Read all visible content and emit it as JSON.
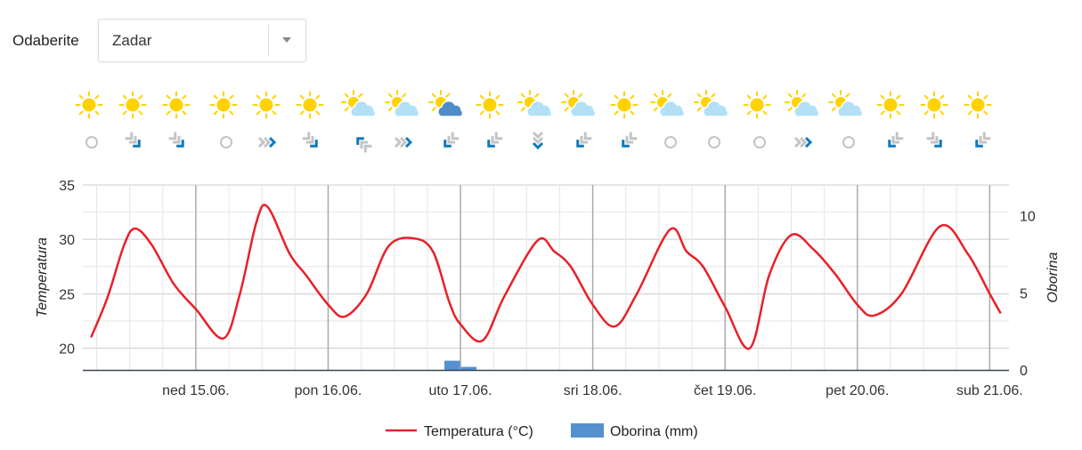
{
  "location_picker": {
    "label": "Odaberite",
    "selected": "Zadar"
  },
  "forecast_icons": [
    {
      "weather": "sun-icon",
      "wind": "calm"
    },
    {
      "weather": "sun-icon",
      "wind": "se"
    },
    {
      "weather": "sun-icon",
      "wind": "se"
    },
    {
      "weather": "sun-icon",
      "wind": "calm"
    },
    {
      "weather": "sun-icon",
      "wind": "e"
    },
    {
      "weather": "sun-icon",
      "wind": "se"
    },
    {
      "weather": "partly-cloudy-icon",
      "wind": "nw"
    },
    {
      "weather": "partly-cloudy-icon",
      "wind": "e"
    },
    {
      "weather": "partly-cloudy-dark-icon",
      "wind": "sw"
    },
    {
      "weather": "sun-icon",
      "wind": "sw"
    },
    {
      "weather": "partly-cloudy-icon",
      "wind": "s"
    },
    {
      "weather": "partly-cloudy-icon",
      "wind": "sw"
    },
    {
      "weather": "sun-icon",
      "wind": "sw"
    },
    {
      "weather": "partly-cloudy-icon",
      "wind": "calm"
    },
    {
      "weather": "partly-cloudy-icon",
      "wind": "calm"
    },
    {
      "weather": "sun-icon",
      "wind": "calm"
    },
    {
      "weather": "partly-cloudy-icon",
      "wind": "e"
    },
    {
      "weather": "partly-cloudy-icon",
      "wind": "calm"
    },
    {
      "weather": "sun-icon",
      "wind": "sw"
    },
    {
      "weather": "sun-icon",
      "wind": "se"
    },
    {
      "weather": "sun-icon",
      "wind": "sw"
    }
  ],
  "colors": {
    "temperature": "#e8202a",
    "precipitation": "#5591cf",
    "sun": "#ffd200",
    "cloud_light": "#b3e0f7",
    "cloud_dark": "#4f8cc9",
    "wind_grey": "#c4c4c4",
    "wind_blue": "#0e7bbd"
  },
  "chart_data": {
    "type": "line",
    "xlim": [
      "14.06. 03:30",
      "21.06. 03:30"
    ],
    "x_ticks": [
      "ned 15.06.",
      "pon 16.06.",
      "uto 17.06.",
      "sri 18.06.",
      "čet 19.06.",
      "pet 20.06.",
      "sub 21.06."
    ],
    "y_left": {
      "label": "Temperatura",
      "ylim": [
        18,
        35
      ],
      "ticks": [
        "20",
        "25",
        "30",
        "35"
      ]
    },
    "y_right": {
      "label": "Oborina",
      "ylim": [
        0,
        12
      ],
      "ticks": [
        "0",
        "5",
        "10"
      ]
    },
    "grid": true,
    "legend": {
      "placement": "bottom",
      "entries": [
        "Temperatura (°C)",
        "Oborina (mm)"
      ]
    },
    "series": [
      {
        "name": "Temperatura (°C)",
        "type": "spline",
        "axis": "left",
        "points": [
          [
            "14.06. 05:00",
            21.0
          ],
          [
            "14.06. 08:00",
            24.7
          ],
          [
            "14.06. 11:00",
            29.5
          ],
          [
            "14.06. 13:00",
            31.0
          ],
          [
            "14.06. 16:00",
            29.5
          ],
          [
            "14.06. 20:00",
            25.9
          ],
          [
            "15.06. 00:00",
            23.6
          ],
          [
            "15.06. 05:00",
            20.9
          ],
          [
            "15.06. 08:00",
            25.0
          ],
          [
            "15.06. 11:00",
            31.6
          ],
          [
            "15.06. 13:00",
            33.0
          ],
          [
            "15.06. 17:00",
            28.7
          ],
          [
            "15.06. 20:00",
            26.7
          ],
          [
            "16.06. 00:00",
            24.0
          ],
          [
            "16.06. 03:00",
            22.9
          ],
          [
            "16.06. 07:00",
            25.0
          ],
          [
            "16.06. 11:00",
            29.4
          ],
          [
            "16.06. 15:30",
            30.1
          ],
          [
            "16.06. 19:00",
            28.9
          ],
          [
            "16.06. 22:00",
            24.2
          ],
          [
            "17.06. 00:00",
            22.2
          ],
          [
            "17.06. 04:00",
            20.7
          ],
          [
            "17.06. 08:00",
            24.8
          ],
          [
            "17.06. 14:00",
            29.9
          ],
          [
            "17.06. 17:00",
            28.9
          ],
          [
            "17.06. 20:00",
            27.5
          ],
          [
            "18.06. 00:00",
            24.0
          ],
          [
            "18.06. 04:00",
            22.0
          ],
          [
            "18.06. 08:00",
            25.0
          ],
          [
            "18.06. 14:00",
            30.9
          ],
          [
            "18.06. 17:00",
            28.9
          ],
          [
            "18.06. 20:00",
            27.5
          ],
          [
            "19.06. 00:00",
            23.8
          ],
          [
            "19.06. 04:30",
            20.0
          ],
          [
            "19.06. 08:00",
            26.7
          ],
          [
            "19.06. 12:00",
            30.4
          ],
          [
            "19.06. 16:00",
            29.1
          ],
          [
            "19.06. 20:00",
            26.8
          ],
          [
            "20.06. 00:00",
            24.0
          ],
          [
            "20.06. 03:00",
            23.0
          ],
          [
            "20.06. 08:00",
            25.0
          ],
          [
            "20.06. 15:00",
            31.2
          ],
          [
            "20.06. 20:00",
            28.7
          ],
          [
            "21.06. 00:00",
            25.0
          ],
          [
            "21.06. 02:00",
            23.2
          ]
        ]
      },
      {
        "name": "Oborina (mm)",
        "type": "bar",
        "axis": "right",
        "points": [
          [
            "16.06. 22:30",
            0.6
          ],
          [
            "17.06. 01:30",
            0.2
          ]
        ]
      }
    ]
  }
}
